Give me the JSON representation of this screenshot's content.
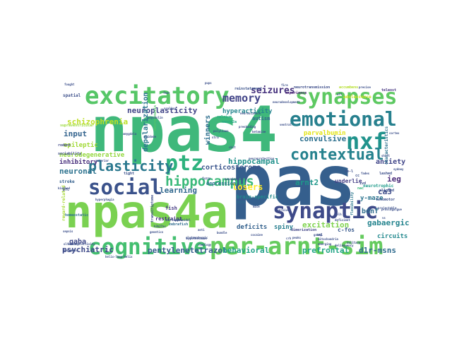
{
  "words": [
    {
      "text": "npas4",
      "color": "#3fb87b"
    },
    {
      "text": "pas",
      "color": "#355f8d"
    },
    {
      "text": "npas4a",
      "color": "#7ad151"
    },
    {
      "text": "excitatory",
      "color": "#56c667"
    },
    {
      "text": "synapses",
      "color": "#5ec962"
    },
    {
      "text": "emotional",
      "color": "#27808e"
    },
    {
      "text": "nxf",
      "color": "#20938c"
    },
    {
      "text": "contextual",
      "color": "#26828e"
    },
    {
      "text": "ptz",
      "color": "#2db27d"
    },
    {
      "text": "social",
      "color": "#3b528b"
    },
    {
      "text": "synaptic",
      "color": "#3e4a89"
    },
    {
      "text": "cognitive",
      "color": "#44bf70"
    },
    {
      "text": "per-arnt-sim",
      "color": "#65cb5e"
    },
    {
      "text": "hippocampus",
      "color": "#3ab97a"
    },
    {
      "text": "plasticity",
      "color": "#2a788e"
    },
    {
      "text": "memory",
      "color": "#404387"
    },
    {
      "text": "neuroplasticity",
      "color": "#414487"
    },
    {
      "text": "schizophrenia",
      "color": "#bddf26"
    },
    {
      "text": "seizures",
      "color": "#46327e"
    },
    {
      "text": "input",
      "color": "#33638d"
    },
    {
      "text": "epileptic",
      "color": "#a2da37"
    },
    {
      "text": "inhibitory",
      "color": "#472d7b"
    },
    {
      "text": "neuronal",
      "color": "#2c728e"
    },
    {
      "text": "hippocampal",
      "color": "#21918c"
    },
    {
      "text": "arnt2",
      "color": "#1f988b"
    },
    {
      "text": "convulsive",
      "color": "#2d708e"
    },
    {
      "text": "neurodegenerative",
      "color": "#95d840"
    },
    {
      "text": "learning",
      "color": "#31688e"
    },
    {
      "text": "ieg",
      "color": "#482878"
    },
    {
      "text": "ca3",
      "color": "#3e4c8a"
    },
    {
      "text": "bdnf",
      "color": "#2f6c8e"
    },
    {
      "text": "winners",
      "color": "#2e6f8e"
    },
    {
      "text": "losers",
      "color": "#fde725"
    },
    {
      "text": "depolarization",
      "color": "#2a768e"
    },
    {
      "text": "anxiety",
      "color": "#404588"
    },
    {
      "text": "excitation",
      "color": "#7fd34e"
    },
    {
      "text": "gabaergic",
      "color": "#25848e"
    },
    {
      "text": "psychiatric",
      "color": "#3e4989"
    },
    {
      "text": "pentylenetetrazol",
      "color": "#355e8d"
    },
    {
      "text": "behavioral",
      "color": "#1fa187"
    },
    {
      "text": "prefrontal",
      "color": "#21a585"
    },
    {
      "text": "d1r-msns",
      "color": "#2f6b8e"
    },
    {
      "text": "gaba",
      "color": "#3f4889"
    },
    {
      "text": "circuits",
      "color": "#23898e"
    },
    {
      "text": "corticosterone",
      "color": "#3a548c"
    },
    {
      "text": "deficits",
      "color": "#34618d"
    },
    {
      "text": "spiny",
      "color": "#277e8e"
    },
    {
      "text": "y-maze",
      "color": "#2b748e"
    },
    {
      "text": "c-fos",
      "color": "#38598c"
    },
    {
      "text": "underlie",
      "color": "#433e85"
    },
    {
      "text": "parvalbumin",
      "color": "#e2e418"
    },
    {
      "text": "hyperactivity",
      "color": "#24868e"
    },
    {
      "text": "autism",
      "color": "#31678e"
    },
    {
      "text": "fish",
      "color": "#443983"
    },
    {
      "text": "restraint",
      "color": "#46307e"
    },
    {
      "text": "depression",
      "color": "#2c718e"
    },
    {
      "text": "brain-specific",
      "color": "#238a8d"
    },
    {
      "text": "reinstatement",
      "color": "#3b528b"
    },
    {
      "text": "neurotransmission",
      "color": "#3d4d8a"
    },
    {
      "text": "experience",
      "color": "#482173"
    },
    {
      "text": "adolescence",
      "color": "#c8e020"
    },
    {
      "text": "accumbens",
      "color": "#b5de2b"
    },
    {
      "text": "teleost",
      "color": "#463480"
    },
    {
      "text": "characteristics",
      "color": "#2c728e"
    },
    {
      "text": "neurotrophic",
      "color": "#1e9b8a"
    },
    {
      "text": "locomotor",
      "color": "#3c508b"
    },
    {
      "text": "homeostatic",
      "color": "#2d708e"
    },
    {
      "text": "stroke",
      "color": "#34608d"
    },
    {
      "text": "sociability",
      "color": "#3e4a89"
    },
    {
      "text": "spatial",
      "color": "#3c4f8a"
    },
    {
      "text": "reward-related",
      "color": "#a8db34"
    },
    {
      "text": "flexibility",
      "color": "#2a778e"
    },
    {
      "text": "transcriptome",
      "color": "#3d4e8a"
    },
    {
      "text": "dimerization",
      "color": "#414487"
    },
    {
      "text": "neurogenesis",
      "color": "#52c569"
    },
    {
      "text": "zebrafish",
      "color": "#2f6c8e"
    },
    {
      "text": "tight",
      "color": "#3b518b"
    },
    {
      "text": "calcium",
      "color": "#27ad81"
    },
    {
      "text": "neuro2a",
      "color": "#22a785"
    },
    {
      "text": "rodent",
      "color": "#3f4788"
    },
    {
      "text": "supraventricular",
      "color": "#9bd93c"
    },
    {
      "text": "cortical",
      "color": "#3a538b"
    },
    {
      "text": "nac",
      "color": "#35b779"
    },
    {
      "text": "bhlh",
      "color": "#306a8e"
    },
    {
      "text": "cal",
      "color": "#3c4f8a"
    },
    {
      "text": "re-l",
      "color": "#3c4f8a"
    },
    {
      "text": "cc",
      "color": "#3c4f8a"
    },
    {
      "text": "pfc",
      "color": "#3c4f8a"
    },
    {
      "text": "ivd",
      "color": "#3c4f8a"
    },
    {
      "text": "lashed",
      "color": "#3c4f8a"
    },
    {
      "text": "aligned",
      "color": "#3c4f8a"
    },
    {
      "text": "psycholin",
      "color": "#3c4f8a"
    },
    {
      "text": "scaling",
      "color": "#3c4f8a"
    },
    {
      "text": "epidode",
      "color": "#3c4f8a"
    },
    {
      "text": "projectable",
      "color": "#3c4f8a"
    },
    {
      "text": "aversive",
      "color": "#3c4f8a"
    },
    {
      "text": "nonadaptive",
      "color": "#3c4f8a"
    },
    {
      "text": "cortex",
      "color": "#3c4f8a"
    },
    {
      "text": "deficient",
      "color": "#3c4f8a"
    },
    {
      "text": "delinquency",
      "color": "#3c4f8a"
    },
    {
      "text": "neurodevelopment",
      "color": "#3c4f8a"
    },
    {
      "text": "neuroprotection",
      "color": "#3c4f8a"
    },
    {
      "text": "polylines",
      "color": "#3c4f8a"
    },
    {
      "text": "shift",
      "color": "#3c4f8a"
    },
    {
      "text": "emerging",
      "color": "#3c4f8a"
    },
    {
      "text": "neuroscience",
      "color": "#3c4f8a"
    },
    {
      "text": "fades",
      "color": "#3c4f8a"
    },
    {
      "text": "precise",
      "color": "#3c4f8a"
    },
    {
      "text": "mitochondria",
      "color": "#3c4f8a"
    },
    {
      "text": "prostogalgue",
      "color": "#3c4f8a"
    },
    {
      "text": "sydney",
      "color": "#3c4f8a"
    },
    {
      "text": "peaks",
      "color": "#3c4f8a"
    },
    {
      "text": "fought",
      "color": "#3c4f8a"
    },
    {
      "text": "shlh",
      "color": "#3c4f8a"
    },
    {
      "text": "kindled",
      "color": "#3c4f8a"
    },
    {
      "text": "vs",
      "color": "#3c4f8a"
    },
    {
      "text": "psyco",
      "color": "#3c4f8a"
    },
    {
      "text": "glutamatergic",
      "color": "#3c4f8a"
    },
    {
      "text": "preshading",
      "color": "#3c4f8a"
    },
    {
      "text": "ketamine",
      "color": "#3c4f8a"
    },
    {
      "text": "gcamp",
      "color": "#3c4f8a"
    },
    {
      "text": "hyperphagia",
      "color": "#3c4f8a"
    },
    {
      "text": "amygdala",
      "color": "#3c4f8a"
    },
    {
      "text": "pyramidal",
      "color": "#3c4f8a"
    },
    {
      "text": "crh",
      "color": "#3c4f8a"
    },
    {
      "text": "h3k27ac",
      "color": "#3c4f8a"
    },
    {
      "text": "bundle",
      "color": "#3c4f8a"
    },
    {
      "text": "ckit",
      "color": "#3c4f8a"
    },
    {
      "text": "cocaine",
      "color": "#3c4f8a"
    },
    {
      "text": "anterior",
      "color": "#3c4f8a"
    },
    {
      "text": "hypothalamus",
      "color": "#3c4f8a"
    },
    {
      "text": "ventral",
      "color": "#3c4f8a"
    },
    {
      "text": "stra",
      "color": "#3c4f8a"
    },
    {
      "text": "aff",
      "color": "#3c4f8a"
    },
    {
      "text": "anti",
      "color": "#3c4f8a"
    },
    {
      "text": "helix-loop-helix",
      "color": "#3c4f8a"
    },
    {
      "text": "phospho",
      "color": "#3c4f8a"
    },
    {
      "text": "solitary",
      "color": "#3c4f8a"
    },
    {
      "text": "rheology",
      "color": "#3c4f8a"
    },
    {
      "text": "genetics",
      "color": "#3c4f8a"
    },
    {
      "text": "sepsis",
      "color": "#3c4f8a"
    },
    {
      "text": "fear",
      "color": "#3c4f8a"
    },
    {
      "text": "olfactory",
      "color": "#3c4f8a"
    },
    {
      "text": "pups",
      "color": "#3c4f8a"
    },
    {
      "text": "fuzzy",
      "color": "#3c4f8a"
    },
    {
      "text": "mice",
      "color": "#3c4f8a"
    },
    {
      "text": "neuronalactivity",
      "color": "#3c4f8a"
    },
    {
      "text": "fire",
      "color": "#3c4f8a"
    }
  ]
}
